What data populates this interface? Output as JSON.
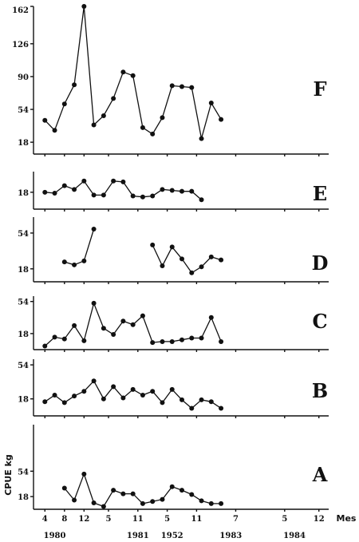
{
  "chart_data": {
    "type": "line",
    "ylabel": "CPUE kg",
    "x_unit_label": "Mes",
    "x_tick_labels": [
      "4",
      "8",
      "12",
      "5",
      "11",
      "5",
      "11",
      "7",
      "5",
      "12"
    ],
    "x_tick_months": [
      4,
      8,
      12,
      17,
      23,
      29,
      35,
      43,
      53,
      60
    ],
    "year_labels": [
      "1980",
      "1981",
      "1952",
      "1983",
      "1984"
    ],
    "year_label_months": [
      6,
      23,
      30,
      42,
      55
    ],
    "x_range": [
      2,
      62
    ],
    "panels": [
      {
        "name": "F",
        "ylim": [
          5,
          167
        ],
        "yticks": [
          18,
          54,
          90,
          126
        ],
        "ytick_labels": [
          "18",
          "54",
          "90",
          "126"
        ],
        "top_label": "162",
        "segments": [
          [
            [
              4,
              42
            ],
            [
              6,
              31
            ],
            [
              8,
              60
            ],
            [
              10,
              81
            ],
            [
              12,
              167
            ],
            [
              14,
              37
            ],
            [
              16,
              47
            ],
            [
              18,
              66
            ],
            [
              20,
              95
            ],
            [
              22,
              91
            ],
            [
              24,
              34
            ],
            [
              26,
              27
            ],
            [
              28,
              45
            ],
            [
              30,
              80
            ],
            [
              32,
              79
            ],
            [
              34,
              78
            ],
            [
              36,
              22
            ],
            [
              38,
              61
            ],
            [
              40,
              43
            ]
          ]
        ]
      },
      {
        "name": "E",
        "ylim": [
          0,
          40
        ],
        "yticks": [
          18
        ],
        "ytick_labels": [
          "18"
        ],
        "segments": [
          [
            [
              4,
              18
            ],
            [
              6,
              17
            ],
            [
              8,
              25
            ],
            [
              10,
              21
            ],
            [
              12,
              30
            ],
            [
              14,
              15
            ],
            [
              16,
              15
            ],
            [
              18,
              30
            ],
            [
              20,
              29
            ],
            [
              22,
              14
            ],
            [
              24,
              13
            ],
            [
              26,
              14
            ],
            [
              28,
              21
            ],
            [
              30,
              20
            ],
            [
              32,
              19
            ],
            [
              34,
              19
            ],
            [
              36,
              10
            ]
          ]
        ]
      },
      {
        "name": "D",
        "ylim": [
          5,
          70
        ],
        "yticks": [
          18,
          54
        ],
        "ytick_labels": [
          "18",
          "54"
        ],
        "segments": [
          [
            [
              8,
              25
            ],
            [
              10,
              22
            ],
            [
              12,
              26
            ],
            [
              14,
              58
            ]
          ],
          [
            [
              26,
              42
            ],
            [
              28,
              21
            ],
            [
              30,
              40
            ],
            [
              32,
              28
            ],
            [
              34,
              14
            ],
            [
              36,
              20
            ],
            [
              38,
              30
            ],
            [
              40,
              27
            ]
          ]
        ]
      },
      {
        "name": "C",
        "ylim": [
          0,
          60
        ],
        "yticks": [
          18,
          54
        ],
        "ytick_labels": [
          "18",
          "54"
        ],
        "segments": [
          [
            [
              4,
              4
            ],
            [
              6,
              14
            ],
            [
              8,
              12
            ],
            [
              10,
              27
            ],
            [
              12,
              10
            ],
            [
              14,
              52
            ],
            [
              16,
              24
            ],
            [
              18,
              17
            ],
            [
              20,
              32
            ],
            [
              22,
              28
            ],
            [
              24,
              38
            ],
            [
              26,
              8
            ],
            [
              28,
              9
            ],
            [
              30,
              9
            ],
            [
              32,
              11
            ],
            [
              34,
              13
            ],
            [
              36,
              13
            ],
            [
              38,
              36
            ],
            [
              40,
              9
            ]
          ]
        ]
      },
      {
        "name": "B",
        "ylim": [
          0,
          60
        ],
        "yticks": [
          18,
          54
        ],
        "ytick_labels": [
          "18",
          "54"
        ],
        "segments": [
          [
            [
              4,
              15
            ],
            [
              6,
              22
            ],
            [
              8,
              14
            ],
            [
              10,
              21
            ],
            [
              12,
              26
            ],
            [
              14,
              37
            ],
            [
              16,
              18
            ],
            [
              18,
              31
            ],
            [
              20,
              19
            ],
            [
              22,
              28
            ],
            [
              24,
              22
            ],
            [
              26,
              26
            ],
            [
              28,
              14
            ],
            [
              30,
              28
            ],
            [
              32,
              17
            ],
            [
              34,
              8
            ],
            [
              36,
              17
            ],
            [
              38,
              15
            ],
            [
              40,
              8
            ]
          ]
        ]
      },
      {
        "name": "A",
        "ylim": [
          0,
          120
        ],
        "yticks": [
          18,
          54
        ],
        "ytick_labels": [
          "18",
          "54"
        ],
        "segments": [
          [
            [
              8,
              30
            ],
            [
              10,
              13
            ],
            [
              12,
              50
            ],
            [
              14,
              9
            ],
            [
              16,
              4
            ],
            [
              18,
              27
            ],
            [
              20,
              22
            ],
            [
              22,
              22
            ],
            [
              24,
              8
            ],
            [
              26,
              11
            ],
            [
              28,
              14
            ],
            [
              30,
              32
            ],
            [
              32,
              27
            ],
            [
              34,
              21
            ],
            [
              36,
              12
            ],
            [
              38,
              8
            ],
            [
              40,
              8
            ]
          ]
        ]
      }
    ]
  }
}
